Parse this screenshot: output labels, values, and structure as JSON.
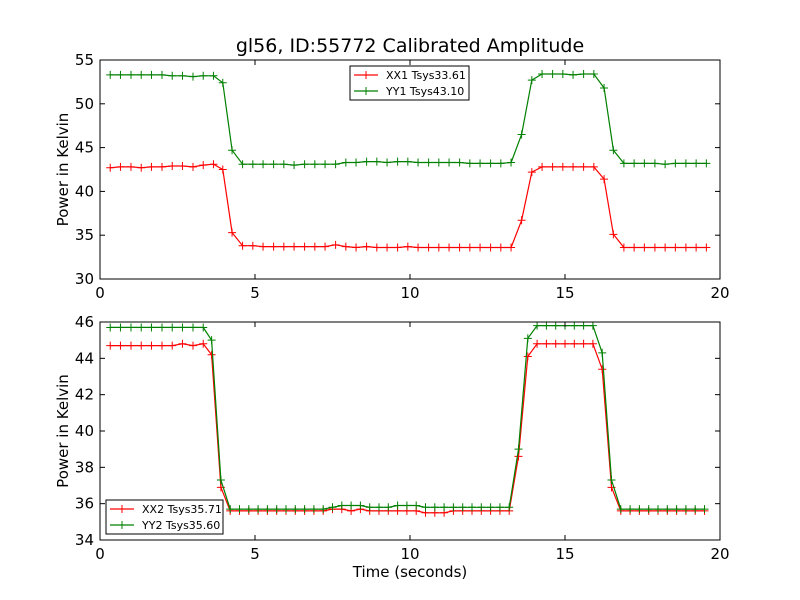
{
  "title": "gl56, ID:55772 Calibrated Amplitude",
  "chart_data": [
    {
      "type": "line",
      "ylabel": "Power in Kelvin",
      "xlabel": "",
      "xlim": [
        0,
        20
      ],
      "ylim": [
        30,
        55
      ],
      "xticks": [
        0,
        5,
        10,
        15,
        20
      ],
      "yticks": [
        30,
        35,
        40,
        45,
        50,
        55
      ],
      "legend_position": "top-center",
      "x": [
        0.33,
        0.66,
        1.0,
        1.33,
        1.66,
        2.0,
        2.33,
        2.66,
        3.0,
        3.33,
        3.66,
        3.96,
        4.26,
        4.6,
        4.93,
        5.26,
        5.6,
        5.93,
        6.26,
        6.6,
        6.93,
        7.26,
        7.6,
        7.93,
        8.26,
        8.6,
        8.93,
        9.26,
        9.6,
        9.93,
        10.26,
        10.6,
        10.93,
        11.26,
        11.6,
        11.93,
        12.26,
        12.6,
        12.93,
        13.26,
        13.6,
        13.93,
        14.26,
        14.6,
        14.93,
        15.26,
        15.6,
        15.93,
        16.26,
        16.56,
        16.9,
        17.23,
        17.56,
        17.9,
        18.23,
        18.56,
        18.9,
        19.23,
        19.56
      ],
      "series": [
        {
          "name": "XX1 Tsys33.61",
          "color": "#ff0000",
          "values": [
            42.7,
            42.8,
            42.8,
            42.7,
            42.8,
            42.8,
            42.9,
            42.9,
            42.8,
            43.0,
            43.1,
            42.5,
            35.3,
            33.8,
            33.8,
            33.7,
            33.7,
            33.7,
            33.7,
            33.7,
            33.7,
            33.7,
            33.9,
            33.7,
            33.6,
            33.7,
            33.6,
            33.6,
            33.6,
            33.7,
            33.6,
            33.6,
            33.6,
            33.6,
            33.6,
            33.6,
            33.6,
            33.6,
            33.6,
            33.6,
            36.7,
            42.2,
            42.8,
            42.8,
            42.8,
            42.8,
            42.8,
            42.8,
            41.4,
            35.1,
            33.6,
            33.6,
            33.6,
            33.6,
            33.6,
            33.6,
            33.6,
            33.6,
            33.6
          ]
        },
        {
          "name": "YY1 Tsys43.10",
          "color": "#008000",
          "values": [
            53.3,
            53.3,
            53.3,
            53.3,
            53.3,
            53.3,
            53.2,
            53.2,
            53.1,
            53.2,
            53.2,
            52.4,
            44.7,
            43.1,
            43.1,
            43.1,
            43.1,
            43.1,
            43.0,
            43.1,
            43.1,
            43.1,
            43.1,
            43.3,
            43.3,
            43.4,
            43.4,
            43.3,
            43.4,
            43.4,
            43.3,
            43.3,
            43.3,
            43.3,
            43.3,
            43.2,
            43.2,
            43.2,
            43.2,
            43.3,
            46.5,
            52.7,
            53.4,
            53.4,
            53.4,
            53.3,
            53.4,
            53.4,
            51.8,
            44.7,
            43.2,
            43.2,
            43.2,
            43.2,
            43.1,
            43.2,
            43.2,
            43.2,
            43.2
          ]
        }
      ]
    },
    {
      "type": "line",
      "ylabel": "Power in Kelvin",
      "xlabel": "Time (seconds)",
      "xlim": [
        0,
        20
      ],
      "ylim": [
        34,
        46
      ],
      "xticks": [
        0,
        5,
        10,
        15,
        20
      ],
      "yticks": [
        34,
        36,
        38,
        40,
        42,
        44,
        46
      ],
      "legend_position": "lower-left",
      "x": [
        0.33,
        0.66,
        1.0,
        1.33,
        1.66,
        2.0,
        2.33,
        2.66,
        3.0,
        3.33,
        3.6,
        3.9,
        4.2,
        4.5,
        4.8,
        5.1,
        5.4,
        5.7,
        6.0,
        6.3,
        6.6,
        6.9,
        7.2,
        7.5,
        7.8,
        8.1,
        8.4,
        8.7,
        9.0,
        9.3,
        9.6,
        9.9,
        10.2,
        10.5,
        10.8,
        11.1,
        11.4,
        11.7,
        12.0,
        12.3,
        12.6,
        12.9,
        13.2,
        13.5,
        13.8,
        14.1,
        14.4,
        14.7,
        15.0,
        15.3,
        15.6,
        15.9,
        16.2,
        16.5,
        16.8,
        17.1,
        17.4,
        17.7,
        18.0,
        18.3,
        18.6,
        18.9,
        19.2,
        19.5
      ],
      "series": [
        {
          "name": "XX2 Tsys35.71",
          "color": "#ff0000",
          "values": [
            44.7,
            44.7,
            44.7,
            44.7,
            44.7,
            44.7,
            44.7,
            44.8,
            44.7,
            44.8,
            44.2,
            36.9,
            35.6,
            35.6,
            35.6,
            35.6,
            35.6,
            35.6,
            35.6,
            35.6,
            35.6,
            35.6,
            35.6,
            35.7,
            35.7,
            35.6,
            35.7,
            35.6,
            35.6,
            35.6,
            35.6,
            35.6,
            35.6,
            35.5,
            35.5,
            35.5,
            35.6,
            35.6,
            35.6,
            35.6,
            35.6,
            35.6,
            35.6,
            38.6,
            44.1,
            44.8,
            44.8,
            44.8,
            44.8,
            44.8,
            44.8,
            44.8,
            43.4,
            36.9,
            35.6,
            35.6,
            35.6,
            35.6,
            35.6,
            35.6,
            35.6,
            35.6,
            35.6,
            35.6
          ]
        },
        {
          "name": "YY2 Tsys35.60",
          "color": "#008000",
          "values": [
            45.7,
            45.7,
            45.7,
            45.7,
            45.7,
            45.7,
            45.7,
            45.7,
            45.7,
            45.7,
            45.0,
            37.3,
            35.7,
            35.7,
            35.7,
            35.7,
            35.7,
            35.7,
            35.7,
            35.7,
            35.7,
            35.7,
            35.7,
            35.8,
            35.9,
            35.9,
            35.9,
            35.8,
            35.8,
            35.8,
            35.9,
            35.9,
            35.9,
            35.8,
            35.8,
            35.8,
            35.8,
            35.8,
            35.8,
            35.8,
            35.8,
            35.8,
            35.8,
            39.0,
            45.1,
            45.8,
            45.8,
            45.8,
            45.8,
            45.8,
            45.8,
            45.8,
            44.3,
            37.3,
            35.7,
            35.7,
            35.7,
            35.7,
            35.7,
            35.7,
            35.7,
            35.7,
            35.7,
            35.7
          ]
        }
      ]
    }
  ]
}
